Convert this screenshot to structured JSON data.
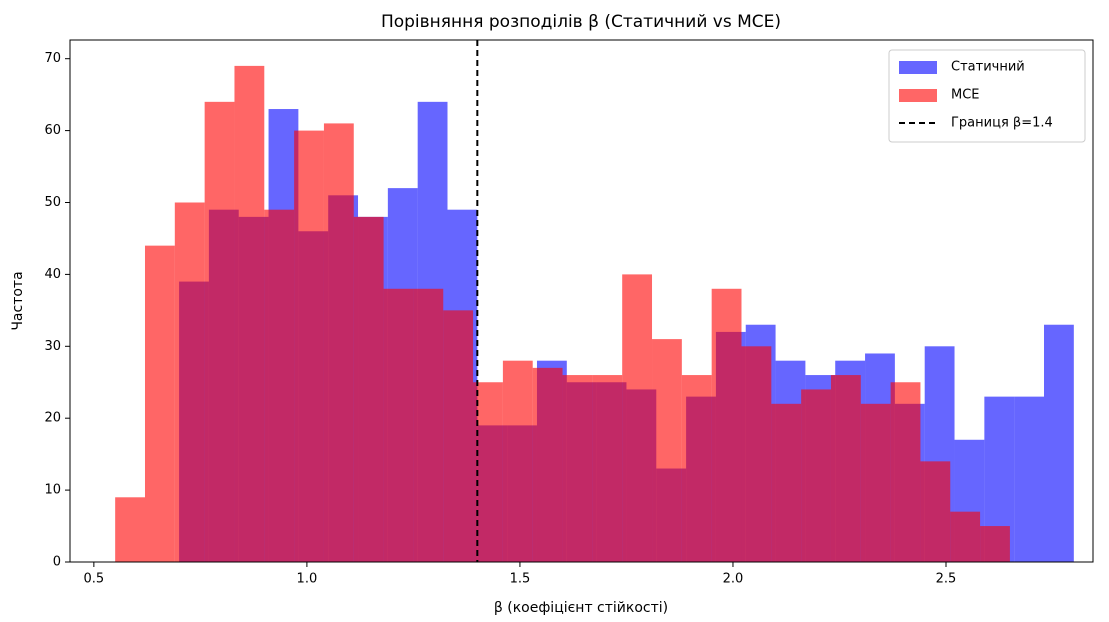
{
  "chart_data": {
    "type": "histogram",
    "title": "Порівняння розподілів β (Статичний vs MCE)",
    "x_label": "β (коефіцієнт стійкості)",
    "y_label": "Частота",
    "xlim": [
      0.444,
      2.845
    ],
    "ylim": [
      0,
      72.6
    ],
    "xticks": [
      0.5,
      {
        "value": 1,
        "label": "1.0"
      },
      1.5,
      {
        "value": 2,
        "label": "2.0"
      },
      2.5
    ],
    "yticks": [
      0,
      10,
      20,
      30,
      40,
      50,
      60,
      70
    ],
    "legend": "upper right",
    "opacity": 0.6,
    "series": [
      {
        "name": "Статичний",
        "color": "#0000ff",
        "bins": [
          0.7,
          0.77,
          0.84,
          0.91,
          0.98,
          1.05,
          1.12,
          1.19,
          1.26,
          1.33,
          1.4,
          1.47,
          1.54,
          1.61,
          1.68,
          1.75,
          1.82,
          1.89,
          1.96,
          2.03,
          2.1,
          2.17,
          2.24,
          2.31,
          2.38,
          2.45,
          2.52,
          2.59,
          2.66,
          2.73,
          2.8
        ],
        "values": [
          39,
          49,
          48,
          63,
          46,
          51,
          48,
          52,
          64,
          49,
          19,
          19,
          28,
          25,
          25,
          24,
          13,
          23,
          32,
          33,
          28,
          26,
          28,
          29,
          22,
          30,
          17,
          23,
          23,
          33
        ]
      },
      {
        "name": "MCE",
        "color": "#ff0000",
        "bins": [
          0.55,
          0.62,
          0.69,
          0.76,
          0.83,
          0.9,
          0.97,
          1.04,
          1.11,
          1.18,
          1.25,
          1.32,
          1.39,
          1.46,
          1.53,
          1.6,
          1.67,
          1.74,
          1.81,
          1.88,
          1.95,
          2.02,
          2.09,
          2.16,
          2.23,
          2.3,
          2.37,
          2.44,
          2.51,
          2.58,
          2.65
        ],
        "values": [
          9,
          44,
          50,
          64,
          69,
          49,
          60,
          61,
          48,
          38,
          38,
          35,
          25,
          28,
          27,
          26,
          26,
          40,
          31,
          26,
          38,
          30,
          22,
          24,
          26,
          22,
          25,
          14,
          7,
          5
        ]
      }
    ],
    "vline": {
      "value": 1.4,
      "label": "Границя β=1.4",
      "color": "#000000"
    }
  }
}
